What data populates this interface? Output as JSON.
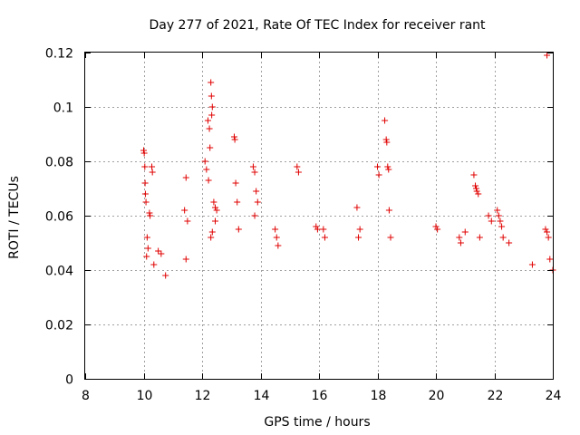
{
  "chart_data": {
    "type": "scatter",
    "title": "Day 277 of 2021, Rate Of TEC Index for receiver rant",
    "xlabel": "GPS time / hours",
    "ylabel": "ROTI / TECUs",
    "xlim": [
      8,
      24
    ],
    "ylim": [
      0,
      0.12
    ],
    "x_ticks": [
      "8",
      "10",
      "12",
      "14",
      "16",
      "18",
      "20",
      "22",
      "24"
    ],
    "y_ticks": [
      "0",
      "0.02",
      "0.04",
      "0.06",
      "0.08",
      "0.1",
      "0.12"
    ],
    "grid": true,
    "marker": "plus",
    "color": "#e00000",
    "series": [
      {
        "values": [
          [
            10.0,
            0.084
          ],
          [
            10.02,
            0.083
          ],
          [
            10.04,
            0.078
          ],
          [
            10.05,
            0.072
          ],
          [
            10.06,
            0.068
          ],
          [
            10.08,
            0.065
          ],
          [
            10.12,
            0.052
          ],
          [
            10.15,
            0.048
          ],
          [
            10.2,
            0.061
          ],
          [
            10.22,
            0.06
          ],
          [
            10.28,
            0.078
          ],
          [
            10.3,
            0.076
          ],
          [
            10.1,
            0.045
          ],
          [
            10.35,
            0.042
          ],
          [
            10.5,
            0.047
          ],
          [
            10.6,
            0.046
          ],
          [
            10.75,
            0.038
          ],
          [
            11.45,
            0.074
          ],
          [
            11.4,
            0.062
          ],
          [
            11.5,
            0.058
          ],
          [
            11.45,
            0.044
          ],
          [
            12.1,
            0.08
          ],
          [
            12.15,
            0.077
          ],
          [
            12.2,
            0.095
          ],
          [
            12.25,
            0.092
          ],
          [
            12.3,
            0.109
          ],
          [
            12.32,
            0.104
          ],
          [
            12.35,
            0.1
          ],
          [
            12.33,
            0.097
          ],
          [
            12.27,
            0.085
          ],
          [
            12.22,
            0.073
          ],
          [
            12.4,
            0.065
          ],
          [
            12.45,
            0.063
          ],
          [
            12.5,
            0.062
          ],
          [
            12.45,
            0.058
          ],
          [
            12.3,
            0.052
          ],
          [
            12.35,
            0.054
          ],
          [
            13.1,
            0.089
          ],
          [
            13.12,
            0.088
          ],
          [
            13.15,
            0.072
          ],
          [
            13.2,
            0.065
          ],
          [
            13.25,
            0.055
          ],
          [
            13.75,
            0.078
          ],
          [
            13.8,
            0.076
          ],
          [
            13.85,
            0.069
          ],
          [
            13.9,
            0.065
          ],
          [
            13.8,
            0.06
          ],
          [
            14.5,
            0.055
          ],
          [
            14.55,
            0.052
          ],
          [
            14.6,
            0.049
          ],
          [
            15.25,
            0.078
          ],
          [
            15.3,
            0.076
          ],
          [
            15.9,
            0.056
          ],
          [
            15.95,
            0.055
          ],
          [
            16.15,
            0.055
          ],
          [
            16.2,
            0.052
          ],
          [
            17.3,
            0.063
          ],
          [
            17.4,
            0.055
          ],
          [
            17.35,
            0.052
          ],
          [
            18.0,
            0.078
          ],
          [
            18.05,
            0.075
          ],
          [
            18.25,
            0.095
          ],
          [
            18.3,
            0.088
          ],
          [
            18.32,
            0.087
          ],
          [
            18.35,
            0.078
          ],
          [
            18.38,
            0.077
          ],
          [
            18.4,
            0.062
          ],
          [
            18.45,
            0.052
          ],
          [
            20.0,
            0.056
          ],
          [
            20.05,
            0.055
          ],
          [
            20.8,
            0.052
          ],
          [
            20.85,
            0.05
          ],
          [
            21.0,
            0.054
          ],
          [
            21.3,
            0.075
          ],
          [
            21.35,
            0.071
          ],
          [
            21.38,
            0.07
          ],
          [
            21.4,
            0.069
          ],
          [
            21.45,
            0.068
          ],
          [
            21.5,
            0.052
          ],
          [
            21.8,
            0.06
          ],
          [
            21.9,
            0.058
          ],
          [
            22.1,
            0.062
          ],
          [
            22.15,
            0.06
          ],
          [
            22.2,
            0.058
          ],
          [
            22.25,
            0.056
          ],
          [
            22.3,
            0.052
          ],
          [
            22.5,
            0.05
          ],
          [
            23.3,
            0.042
          ],
          [
            23.75,
            0.055
          ],
          [
            23.8,
            0.054
          ],
          [
            23.85,
            0.052
          ],
          [
            23.8,
            0.119
          ],
          [
            23.9,
            0.044
          ],
          [
            24.0,
            0.04
          ]
        ]
      }
    ]
  }
}
